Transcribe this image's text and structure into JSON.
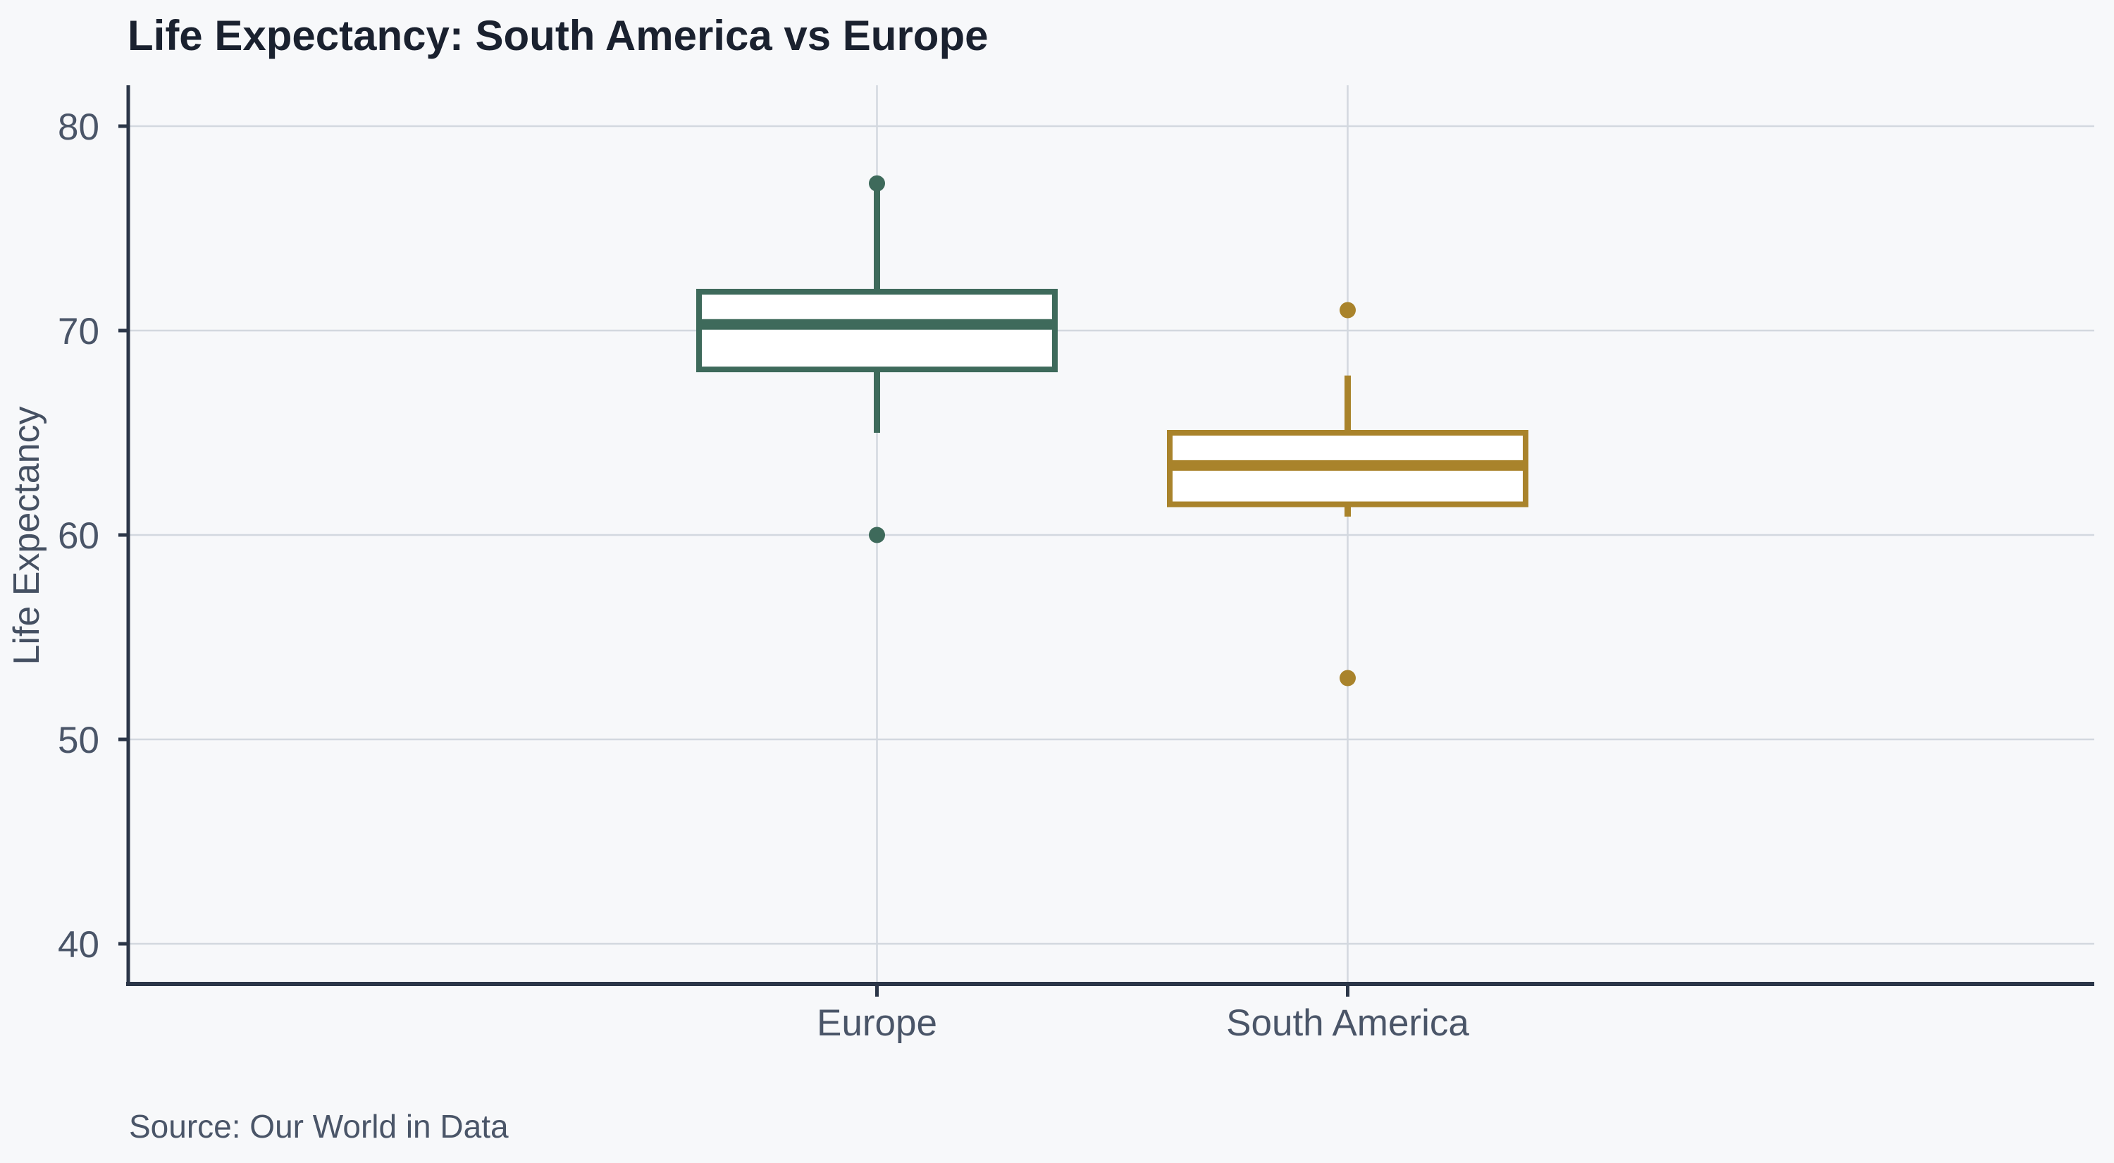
{
  "title": "Life Expectancy: South America vs Europe",
  "source_note": "Source: Our World in Data",
  "colors": {
    "background": "#F7F8FA",
    "title_text": "#1A212F",
    "axis": "#2B3648",
    "tick_label": "#4A5568",
    "axis_title": "#455062",
    "source_text": "#4A5568",
    "grid": "#D3D8DF",
    "box_fill": "#FFFFFF",
    "europe": "#3E6A5B",
    "south_america": "#A9832B"
  },
  "chart_data": {
    "type": "boxplot",
    "title": "Life Expectancy: South America vs Europe",
    "xlabel": "",
    "ylabel": "Life Expectancy",
    "ylim": [
      38.2,
      82.0
    ],
    "yticks": [
      40,
      50,
      60,
      70,
      80
    ],
    "grid": "on",
    "legend": "none",
    "categories": [
      "Europe",
      "South America"
    ],
    "series": [
      {
        "name": "Europe",
        "color": "#3E6A5B",
        "q1": 68.1,
        "median": 70.3,
        "q3": 71.9,
        "whisker_low": 65.0,
        "whisker_high": 77.2,
        "outliers": [
          77.2,
          60.0
        ]
      },
      {
        "name": "South America",
        "color": "#A9832B",
        "q1": 61.5,
        "median": 63.4,
        "q3": 65.0,
        "whisker_low": 60.9,
        "whisker_high": 67.8,
        "outliers": [
          71.0,
          53.0
        ]
      }
    ]
  }
}
